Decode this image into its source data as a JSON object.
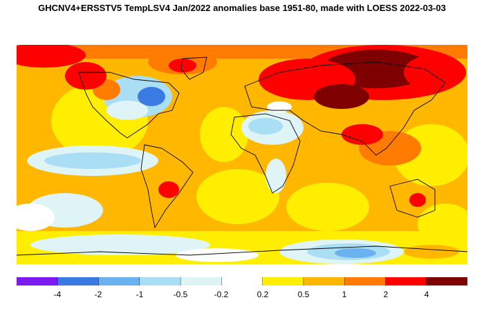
{
  "title": "GHCNV4+ERSSTV5 TempLSV4 Jan/2022 anomalies base 1951-80, made with LOESS 2022-03-03",
  "legend": {
    "boundaries": [
      "-4",
      "-2",
      "-1",
      "-0.5",
      "-0.2",
      "0.2",
      "0.5",
      "1",
      "2",
      "4"
    ],
    "bins": [
      {
        "color": "#7b1bf0"
      },
      {
        "color": "#3a7be3"
      },
      {
        "color": "#6bb3f0"
      },
      {
        "color": "#a9def4"
      },
      {
        "color": "#dff4f7"
      },
      {
        "color": "#ffffff"
      },
      {
        "color": "#ffee00"
      },
      {
        "color": "#ffb700"
      },
      {
        "color": "#ff7c00"
      },
      {
        "color": "#ff0000"
      },
      {
        "color": "#7f0000"
      }
    ]
  }
}
